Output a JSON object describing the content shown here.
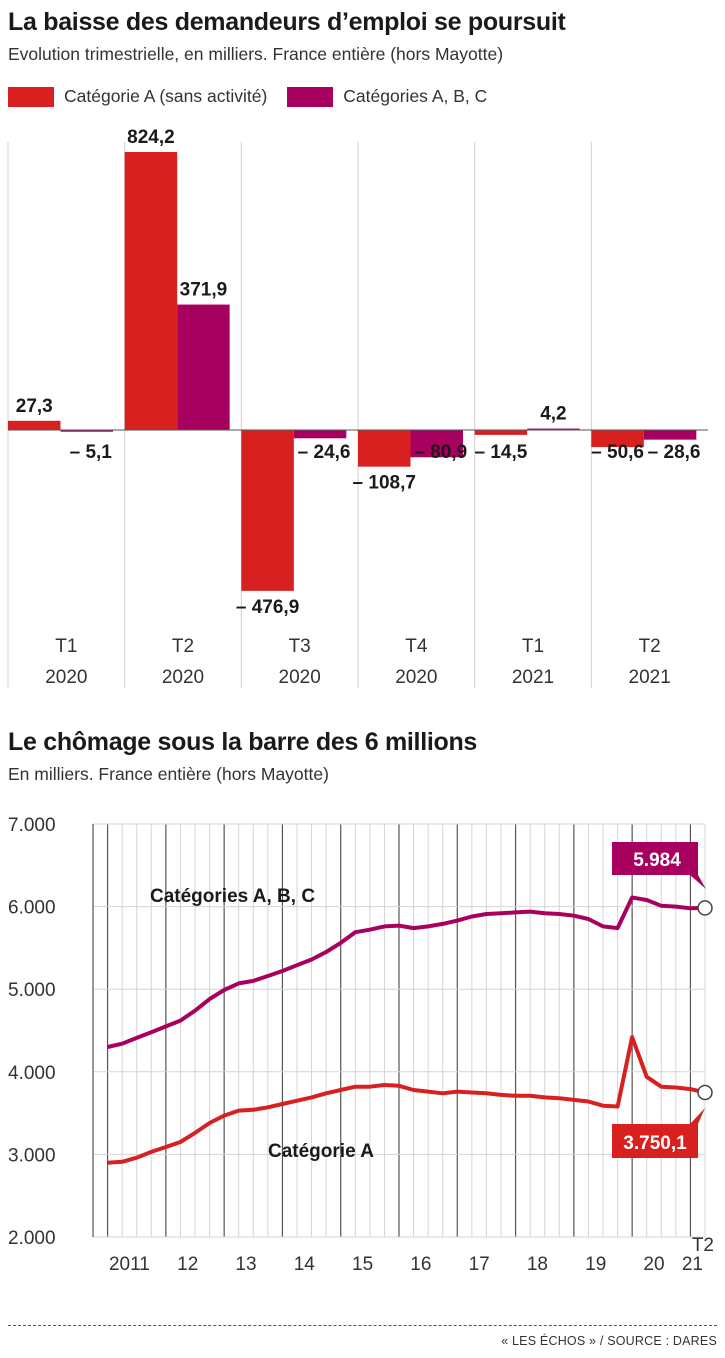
{
  "chart_data": [
    {
      "type": "bar",
      "title": "La baisse des demandeurs d’emploi se poursuit",
      "subtitle": "Evolution trimestrielle, en milliers. France entière (hors Mayotte)",
      "categories": [
        {
          "q": "T1",
          "y": "2020"
        },
        {
          "q": "T2",
          "y": "2020"
        },
        {
          "q": "T3",
          "y": "2020"
        },
        {
          "q": "T4",
          "y": "2020"
        },
        {
          "q": "T1",
          "y": "2021"
        },
        {
          "q": "T2",
          "y": "2021"
        }
      ],
      "series": [
        {
          "name": "Catégorie A (sans activité)",
          "color": "#d7201f",
          "values": [
            27.3,
            824.2,
            -476.9,
            -108.7,
            -14.5,
            -50.6
          ],
          "labels": [
            "27,3",
            "824,2",
            "– 476,9",
            "– 108,7",
            "– 14,5",
            "– 50,6"
          ]
        },
        {
          "name": "Catégories A, B, C",
          "color": "#a8005e",
          "values": [
            -5.1,
            371.9,
            -24.6,
            -80.9,
            4.2,
            -28.6
          ],
          "labels": [
            "– 5,1",
            "371,9",
            "– 24,6",
            "– 80,9",
            "4,2",
            "– 28,6"
          ]
        }
      ],
      "legend": "top-left",
      "grid": false
    },
    {
      "type": "line",
      "title": "Le chômage sous la barre des 6 millions",
      "subtitle": "En milliers. France entière (hors Mayotte)",
      "ylim": [
        2000,
        7000
      ],
      "yticks": [
        2000,
        3000,
        4000,
        5000,
        6000,
        7000
      ],
      "ytick_labels": [
        "2.000",
        "3.000",
        "4.000",
        "5.000",
        "6.000",
        "7.000"
      ],
      "xticks": [
        "2011",
        "12",
        "13",
        "14",
        "15",
        "16",
        "17",
        "18",
        "19",
        "20",
        "21"
      ],
      "x_last_quarter_label": "T2",
      "grid": true,
      "series": [
        {
          "name": "Catégories A, B, C",
          "color": "#a8005e",
          "end_label": "5.984",
          "x": [
            2011.0,
            2011.25,
            2011.5,
            2011.75,
            2012.0,
            2012.25,
            2012.5,
            2012.75,
            2013.0,
            2013.25,
            2013.5,
            2013.75,
            2014.0,
            2014.25,
            2014.5,
            2014.75,
            2015.0,
            2015.25,
            2015.5,
            2015.75,
            2016.0,
            2016.25,
            2016.5,
            2016.75,
            2017.0,
            2017.25,
            2017.5,
            2017.75,
            2018.0,
            2018.25,
            2018.5,
            2018.75,
            2019.0,
            2019.25,
            2019.5,
            2019.75,
            2020.0,
            2020.25,
            2020.5,
            2020.75,
            2021.0,
            2021.25
          ],
          "values": [
            4300,
            4340,
            4410,
            4480,
            4550,
            4620,
            4740,
            4880,
            4990,
            5070,
            5100,
            5160,
            5220,
            5290,
            5360,
            5450,
            5560,
            5690,
            5720,
            5760,
            5770,
            5740,
            5760,
            5790,
            5830,
            5880,
            5910,
            5920,
            5930,
            5940,
            5920,
            5910,
            5890,
            5850,
            5760,
            5740,
            6110,
            6080,
            6010,
            6000,
            5980,
            5984
          ]
        },
        {
          "name": "Catégorie A",
          "color": "#d7201f",
          "end_label": "3.750,1",
          "x": [
            2011.0,
            2011.25,
            2011.5,
            2011.75,
            2012.0,
            2012.25,
            2012.5,
            2012.75,
            2013.0,
            2013.25,
            2013.5,
            2013.75,
            2014.0,
            2014.25,
            2014.5,
            2014.75,
            2015.0,
            2015.25,
            2015.5,
            2015.75,
            2016.0,
            2016.25,
            2016.5,
            2016.75,
            2017.0,
            2017.25,
            2017.5,
            2017.75,
            2018.0,
            2018.25,
            2018.5,
            2018.75,
            2019.0,
            2019.25,
            2019.5,
            2019.75,
            2020.0,
            2020.25,
            2020.5,
            2020.75,
            2021.0,
            2021.25
          ],
          "values": [
            2900,
            2910,
            2960,
            3030,
            3090,
            3150,
            3260,
            3380,
            3470,
            3530,
            3540,
            3570,
            3610,
            3650,
            3690,
            3740,
            3780,
            3820,
            3820,
            3840,
            3830,
            3780,
            3760,
            3740,
            3760,
            3750,
            3740,
            3720,
            3710,
            3710,
            3690,
            3680,
            3660,
            3640,
            3590,
            3580,
            4420,
            3940,
            3820,
            3810,
            3790,
            3750.1
          ]
        }
      ],
      "annotations": [
        "Catégories A, B, C",
        "Catégorie A"
      ]
    }
  ],
  "source": "« LES ÉCHOS » / SOURCE : DARES"
}
